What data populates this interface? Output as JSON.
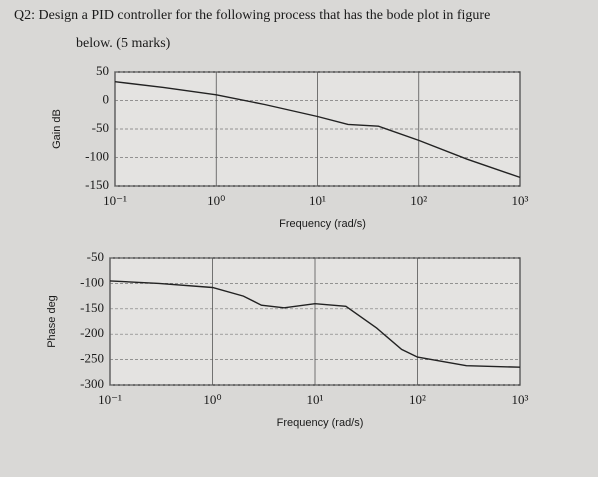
{
  "question": [
    "Q2: Design a PID controller for the following process that has the bode plot in figure",
    "below. (5 marks)"
  ],
  "chart_data": [
    {
      "type": "line",
      "xlabel": "Frequency (rad/s)",
      "ylabel": "Gain dB",
      "xscale": "log",
      "grid": true,
      "x": [
        0.1,
        0.3,
        1,
        3,
        10,
        20,
        40,
        100,
        300,
        1000
      ],
      "series": [
        {
          "color": "#222222",
          "values": [
            33,
            23,
            10,
            -7,
            -28,
            -42,
            -45,
            -70,
            -103,
            -135
          ]
        }
      ],
      "xlim": [
        0.1,
        1000
      ],
      "ylim": [
        -150,
        50
      ],
      "xticks": [
        {
          "value": 0.1,
          "label": "10⁻¹"
        },
        {
          "value": 1,
          "label": "10⁰"
        },
        {
          "value": 10,
          "label": "10¹"
        },
        {
          "value": 100,
          "label": "10²"
        },
        {
          "value": 1000,
          "label": "10³"
        }
      ],
      "yticks": [
        50,
        0,
        -50,
        -100,
        -150
      ]
    },
    {
      "type": "line",
      "xlabel": "Frequency (rad/s)",
      "ylabel": "Phase deg",
      "xscale": "log",
      "grid": true,
      "x": [
        0.1,
        0.3,
        1,
        2,
        3,
        5,
        10,
        20,
        40,
        70,
        100,
        300,
        1000
      ],
      "series": [
        {
          "color": "#222222",
          "values": [
            -95,
            -100,
            -108,
            -125,
            -143,
            -148,
            -140,
            -145,
            -188,
            -230,
            -245,
            -262,
            -265
          ]
        }
      ],
      "xlim": [
        0.1,
        1000
      ],
      "ylim": [
        -300,
        -50
      ],
      "xticks": [
        {
          "value": 0.1,
          "label": "10⁻¹"
        },
        {
          "value": 1,
          "label": "10⁰"
        },
        {
          "value": 10,
          "label": "10¹"
        },
        {
          "value": 100,
          "label": "10²"
        },
        {
          "value": 1000,
          "label": "10³"
        }
      ],
      "yticks": [
        -50,
        -100,
        -150,
        -200,
        -250,
        -300
      ]
    }
  ]
}
